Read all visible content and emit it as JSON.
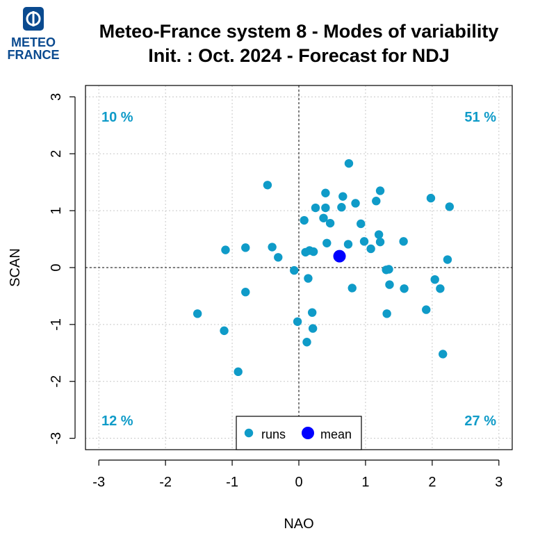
{
  "logo": {
    "line1": "METEO",
    "line2": "FRANCE",
    "color": "#0a4a8f"
  },
  "chart_data": {
    "type": "scatter",
    "title": "Meteo-France system 8 - Modes of variability",
    "subtitle": "Init. : Oct. 2024 - Forecast for NDJ",
    "xlabel": "NAO",
    "ylabel": "SCAN",
    "xlim": [
      -3.2,
      3.2
    ],
    "ylim": [
      -3.2,
      3.2
    ],
    "xticks": [
      -3,
      -2,
      -1,
      0,
      1,
      2,
      3
    ],
    "yticks": [
      -3,
      -2,
      -1,
      0,
      1,
      2,
      3
    ],
    "grid": true,
    "reference_lines": {
      "x": 0,
      "y": 0
    },
    "quadrant_labels": {
      "top_left": "10 %",
      "top_right": "51 %",
      "bottom_left": "12 %",
      "bottom_right": "27 %"
    },
    "legend": {
      "placement": "bottom-center",
      "entries": [
        "runs",
        "mean"
      ]
    },
    "colors": {
      "runs": "#0f9bc8",
      "mean": "#0000ff",
      "quadrant_text": "#0f9bc8"
    },
    "series": [
      {
        "name": "runs",
        "points": [
          [
            0.75,
            1.83
          ],
          [
            -0.47,
            1.45
          ],
          [
            0.4,
            1.31
          ],
          [
            0.66,
            1.25
          ],
          [
            1.22,
            1.35
          ],
          [
            0.85,
            1.13
          ],
          [
            1.16,
            1.17
          ],
          [
            0.25,
            1.05
          ],
          [
            0.4,
            1.05
          ],
          [
            0.64,
            1.06
          ],
          [
            1.98,
            1.22
          ],
          [
            2.26,
            1.07
          ],
          [
            0.37,
            0.87
          ],
          [
            0.47,
            0.78
          ],
          [
            0.08,
            0.83
          ],
          [
            0.93,
            0.77
          ],
          [
            1.2,
            0.58
          ],
          [
            -1.1,
            0.31
          ],
          [
            -0.8,
            0.35
          ],
          [
            -0.4,
            0.36
          ],
          [
            0.42,
            0.43
          ],
          [
            0.74,
            0.41
          ],
          [
            0.98,
            0.46
          ],
          [
            1.22,
            0.45
          ],
          [
            1.57,
            0.46
          ],
          [
            0.16,
            0.3
          ],
          [
            0.22,
            0.28
          ],
          [
            0.1,
            0.27
          ],
          [
            1.08,
            0.33
          ],
          [
            -0.31,
            0.18
          ],
          [
            2.23,
            0.14
          ],
          [
            -0.07,
            -0.05
          ],
          [
            1.31,
            -0.04
          ],
          [
            1.35,
            -0.03
          ],
          [
            0.14,
            -0.19
          ],
          [
            1.36,
            -0.3
          ],
          [
            1.58,
            -0.37
          ],
          [
            0.8,
            -0.36
          ],
          [
            2.04,
            -0.21
          ],
          [
            2.12,
            -0.37
          ],
          [
            -0.8,
            -0.43
          ],
          [
            -1.52,
            -0.81
          ],
          [
            0.2,
            -0.79
          ],
          [
            1.32,
            -0.81
          ],
          [
            1.91,
            -0.74
          ],
          [
            -0.02,
            -0.95
          ],
          [
            0.21,
            -1.07
          ],
          [
            -1.12,
            -1.11
          ],
          [
            0.12,
            -1.31
          ],
          [
            2.16,
            -1.52
          ],
          [
            -0.91,
            -1.83
          ]
        ]
      },
      {
        "name": "mean",
        "points": [
          [
            0.61,
            0.2
          ]
        ]
      }
    ]
  }
}
